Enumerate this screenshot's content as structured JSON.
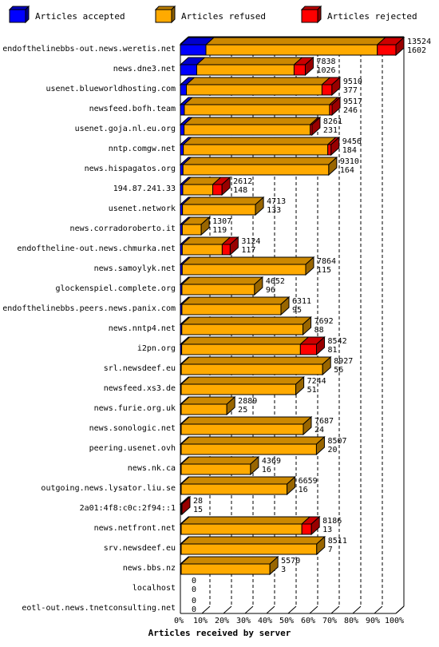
{
  "chart_data": {
    "type": "bar",
    "orientation": "horizontal",
    "stacked": true,
    "xlabel": "Articles received by server",
    "ticks": [
      "0%",
      "10%",
      "20%",
      "30%",
      "40%",
      "50%",
      "60%",
      "70%",
      "80%",
      "90%",
      "100%"
    ],
    "grid": true,
    "legend": "top",
    "series": [
      {
        "name": "Articles accepted",
        "color": "#0000ff"
      },
      {
        "name": "Articles refused",
        "color": "#ffaa00"
      },
      {
        "name": "Articles rejected",
        "color": "#ff0000"
      }
    ],
    "rows": [
      {
        "server": "endofthelinebbs-out.news.weretis.net",
        "accepted": 1602,
        "refused": 10756,
        "rejected": 1166,
        "count_top": "13524",
        "count_bottom": "1602"
      },
      {
        "server": "news.dne3.net",
        "accepted": 1026,
        "refused": 6109,
        "rejected": 703,
        "count_top": "7838",
        "count_bottom": "1026"
      },
      {
        "server": "usenet.blueworldhosting.com",
        "accepted": 377,
        "refused": 8510,
        "rejected": 623,
        "count_top": "9510",
        "count_bottom": "377"
      },
      {
        "server": "newsfeed.bofh.team",
        "accepted": 246,
        "refused": 9117,
        "rejected": 154,
        "count_top": "9517",
        "count_bottom": "246"
      },
      {
        "server": "usenet.goja.nl.eu.org",
        "accepted": 231,
        "refused": 7917,
        "rejected": 113,
        "count_top": "8261",
        "count_bottom": "231"
      },
      {
        "server": "nntp.comgw.net",
        "accepted": 184,
        "refused": 9067,
        "rejected": 205,
        "count_top": "9456",
        "count_bottom": "184"
      },
      {
        "server": "news.hispagatos.org",
        "accepted": 164,
        "refused": 9146,
        "rejected": 0,
        "count_top": "9310",
        "count_bottom": "164"
      },
      {
        "server": "194.87.241.33",
        "accepted": 148,
        "refused": 1884,
        "rejected": 580,
        "count_top": "2612",
        "count_bottom": "148"
      },
      {
        "server": "usenet.network",
        "accepted": 133,
        "refused": 4580,
        "rejected": 0,
        "count_top": "4713",
        "count_bottom": "133"
      },
      {
        "server": "news.corradoroberto.it",
        "accepted": 119,
        "refused": 1188,
        "rejected": 0,
        "count_top": "1307",
        "count_bottom": "119"
      },
      {
        "server": "endoftheline-out.news.chmurka.net",
        "accepted": 117,
        "refused": 2507,
        "rejected": 500,
        "count_top": "3124",
        "count_bottom": "117"
      },
      {
        "server": "news.samoylyk.net",
        "accepted": 115,
        "refused": 7749,
        "rejected": 0,
        "count_top": "7864",
        "count_bottom": "115"
      },
      {
        "server": "glockenspiel.complete.org",
        "accepted": 96,
        "refused": 4556,
        "rejected": 0,
        "count_top": "4652",
        "count_bottom": "96"
      },
      {
        "server": "endofthelinebbs.peers.news.panix.com",
        "accepted": 95,
        "refused": 6216,
        "rejected": 0,
        "count_top": "6311",
        "count_bottom": "95"
      },
      {
        "server": "news.nntp4.net",
        "accepted": 88,
        "refused": 7604,
        "rejected": 0,
        "count_top": "7692",
        "count_bottom": "88"
      },
      {
        "server": "i2pn.org",
        "accepted": 81,
        "refused": 7450,
        "rejected": 1011,
        "count_top": "8542",
        "count_bottom": "81"
      },
      {
        "server": "srl.newsdeef.eu",
        "accepted": 56,
        "refused": 8871,
        "rejected": 0,
        "count_top": "8927",
        "count_bottom": "56"
      },
      {
        "server": "newsfeed.xs3.de",
        "accepted": 51,
        "refused": 7193,
        "rejected": 0,
        "count_top": "7244",
        "count_bottom": "51"
      },
      {
        "server": "news.furie.org.uk",
        "accepted": 25,
        "refused": 2864,
        "rejected": 0,
        "count_top": "2889",
        "count_bottom": "25"
      },
      {
        "server": "news.sonologic.net",
        "accepted": 24,
        "refused": 7663,
        "rejected": 0,
        "count_top": "7687",
        "count_bottom": "24"
      },
      {
        "server": "peering.usenet.ovh",
        "accepted": 20,
        "refused": 8487,
        "rejected": 0,
        "count_top": "8507",
        "count_bottom": "20"
      },
      {
        "server": "news.nk.ca",
        "accepted": 16,
        "refused": 4353,
        "rejected": 0,
        "count_top": "4369",
        "count_bottom": "16"
      },
      {
        "server": "outgoing.news.lysator.liu.se",
        "accepted": 16,
        "refused": 6643,
        "rejected": 0,
        "count_top": "6659",
        "count_bottom": "16"
      },
      {
        "server": "2a01:4f8:c0c:2f94::1",
        "accepted": 15,
        "refused": 0,
        "rejected": 13,
        "count_top": "28",
        "count_bottom": "15"
      },
      {
        "server": "news.netfront.net",
        "accepted": 13,
        "refused": 7573,
        "rejected": 600,
        "count_top": "8186",
        "count_bottom": "13"
      },
      {
        "server": "srv.newsdeef.eu",
        "accepted": 7,
        "refused": 8504,
        "rejected": 0,
        "count_top": "8511",
        "count_bottom": "7"
      },
      {
        "server": "news.bbs.nz",
        "accepted": 3,
        "refused": 5567,
        "rejected": 0,
        "count_top": "5570",
        "count_bottom": "3"
      },
      {
        "server": "localhost",
        "accepted": 0,
        "refused": 0,
        "rejected": 0,
        "count_top": "0",
        "count_bottom": "0"
      },
      {
        "server": "eotl-out.news.tnetconsulting.net",
        "accepted": 0,
        "refused": 0,
        "rejected": 0,
        "count_top": "0",
        "count_bottom": "0"
      }
    ],
    "max_total": 13524
  }
}
